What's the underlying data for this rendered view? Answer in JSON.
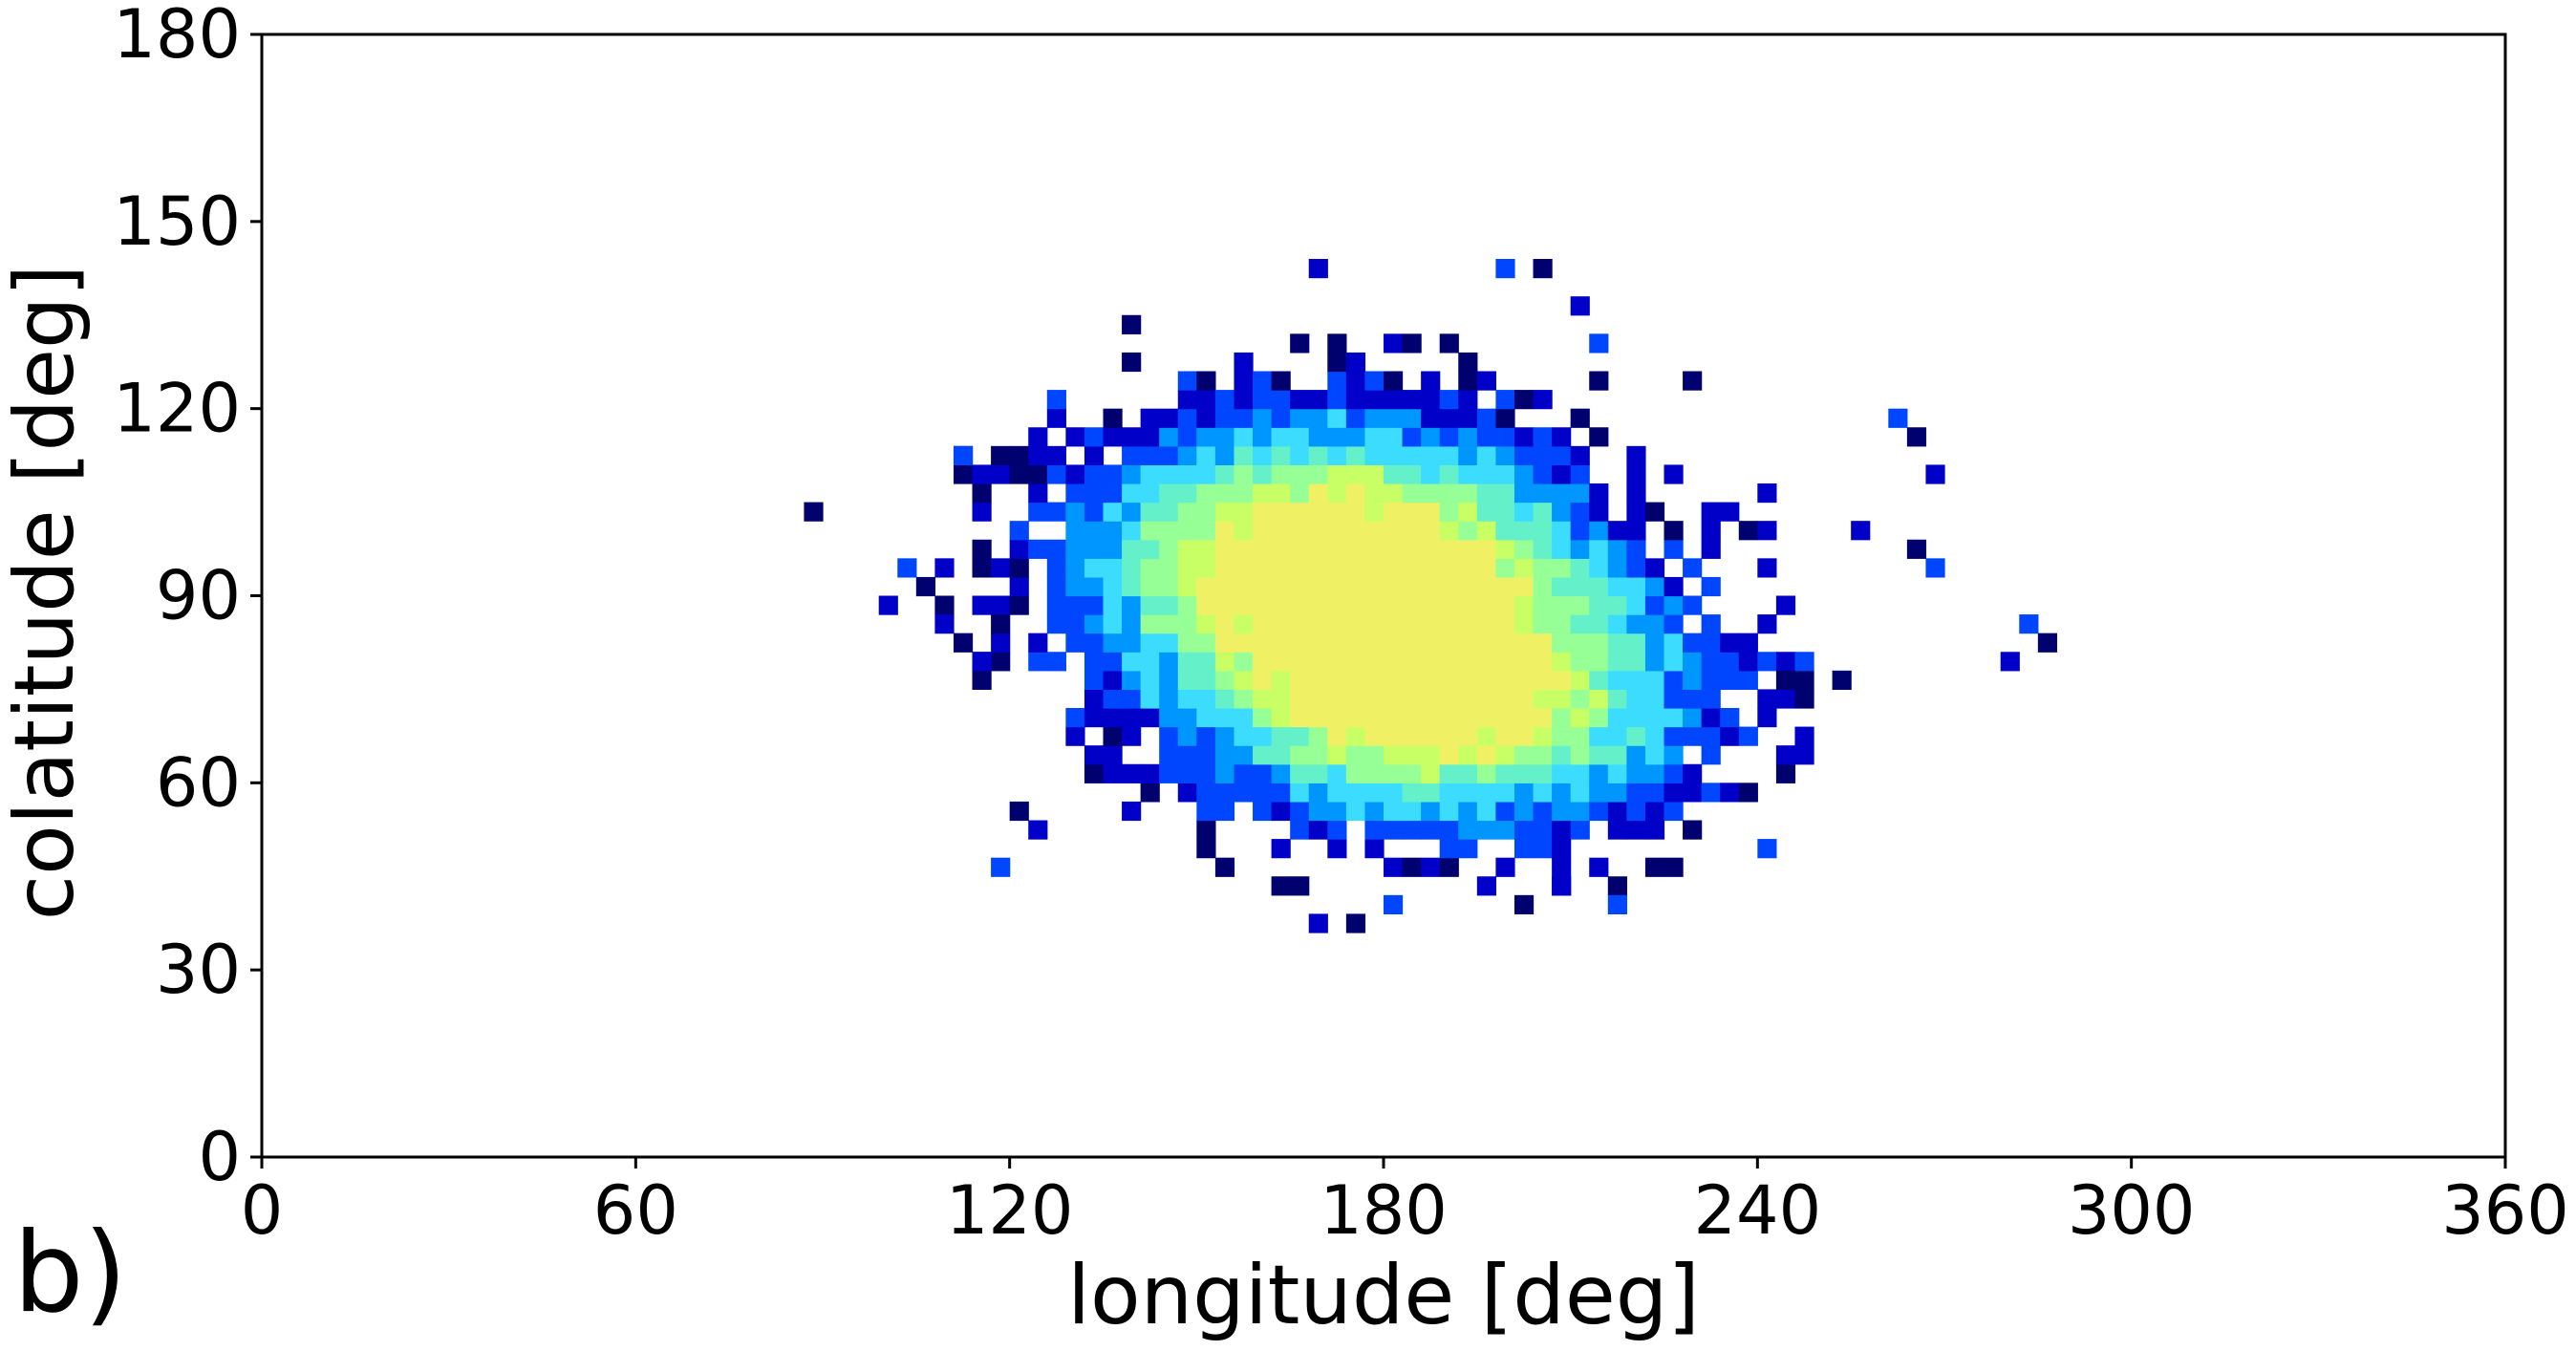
{
  "chart_data": {
    "type": "heatmap",
    "panel_label": "b)",
    "title": "",
    "xlabel": "longitude [deg]",
    "ylabel": "colatitude [deg]",
    "xlim": [
      0,
      360
    ],
    "ylim": [
      0,
      180
    ],
    "xticks": [
      "0",
      "60",
      "120",
      "180",
      "240",
      "300",
      "360"
    ],
    "yticks": [
      "0",
      "30",
      "60",
      "90",
      "120",
      "150",
      "180"
    ],
    "grid": false,
    "colormap": "jet (dark blue = low, green-yellow = high)",
    "colors": [
      "#00006e",
      "#0000c8",
      "#0046ff",
      "#0096ff",
      "#3cdcff",
      "#64f0c8",
      "#96ff96",
      "#c8ff64",
      "#f0f064"
    ],
    "bin_size_deg": 3,
    "density_blobs": [
      {
        "center_lon": 171,
        "center_lat": 97,
        "sigma_lon": 27,
        "sigma_lat": 15,
        "peak": 1.0
      },
      {
        "center_lon": 190,
        "center_lat": 73,
        "sigma_lon": 27,
        "sigma_lat": 14,
        "peak": 0.93
      }
    ],
    "outlier_points": [
      [
        87,
        102
      ],
      [
        101,
        88
      ],
      [
        103,
        93
      ],
      [
        105,
        90
      ],
      [
        108,
        86
      ],
      [
        112,
        111
      ],
      [
        118,
        84
      ],
      [
        114,
        78
      ],
      [
        117,
        46
      ],
      [
        120,
        55
      ],
      [
        123,
        52
      ],
      [
        126,
        121
      ],
      [
        139,
        133
      ],
      [
        169,
        141
      ],
      [
        198,
        142
      ],
      [
        204,
        141
      ],
      [
        212,
        137
      ],
      [
        214,
        131
      ],
      [
        229,
        123
      ],
      [
        241,
        107
      ],
      [
        262,
        117
      ],
      [
        265,
        114
      ],
      [
        268,
        108
      ],
      [
        268,
        95
      ],
      [
        266,
        98
      ],
      [
        256,
        99
      ],
      [
        283,
        84
      ],
      [
        286,
        81
      ],
      [
        281,
        78
      ],
      [
        247,
        78
      ],
      [
        245,
        75
      ],
      [
        240,
        72
      ],
      [
        241,
        48
      ],
      [
        175,
        37
      ],
      [
        168,
        38
      ],
      [
        181,
        40
      ],
      [
        201,
        40
      ],
      [
        209,
        43
      ],
      [
        216,
        41
      ]
    ]
  }
}
